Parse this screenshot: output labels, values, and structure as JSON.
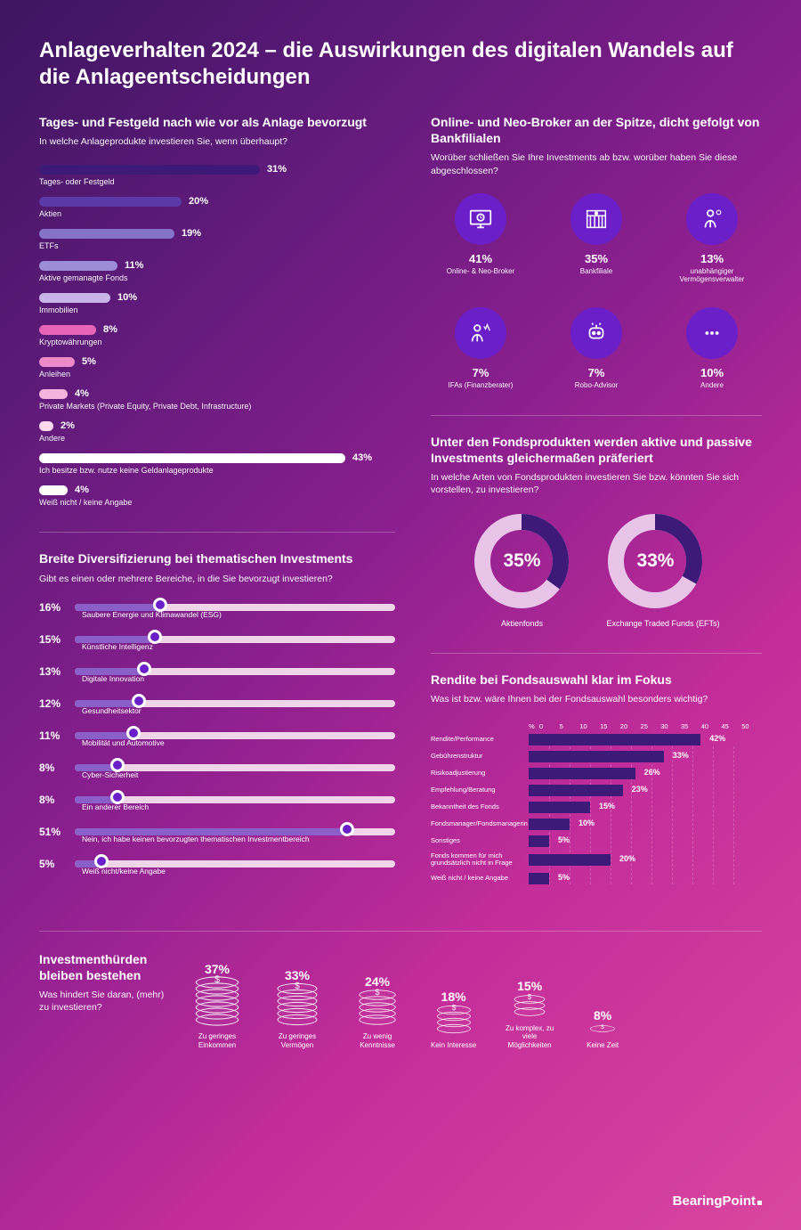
{
  "title": "Anlageverhalten 2024 – die Auswirkungen des digitalen Wandels auf die Anlageentscheidungen",
  "brand": "BearingPoint",
  "colors": {
    "bar_dark_purple": "#3d1a78",
    "bar_mid_purple": "#5b3aa8",
    "bar_light_purple": "#9d8cd6",
    "bar_pale": "#c9b4ea",
    "bar_pink": "#e665b9",
    "bar_light_pink": "#f5b3dc",
    "bar_white": "#ffffff",
    "icon_bg": "#6b1fc9",
    "donut_fg": "#3d1a78",
    "donut_bg": "#e8c5e8",
    "slider_track": "#f0d4e8",
    "slider_fill": "#8b5fc9"
  },
  "s1": {
    "heading": "Tages- und Festgeld nach wie vor als Anlage bevorzugt",
    "subq": "In welche Anlageprodukte investieren Sie, wenn überhaupt?",
    "max_pct": 50,
    "bars": [
      {
        "label": "Tages- oder Festgeld",
        "value": 31,
        "color": "#3d1a78"
      },
      {
        "label": "Aktien",
        "value": 20,
        "color": "#5b3aa8"
      },
      {
        "label": "ETFs",
        "value": 19,
        "color": "#8573c9"
      },
      {
        "label": "Aktive gemanagte Fonds",
        "value": 11,
        "color": "#9d8cd6"
      },
      {
        "label": "Immobilien",
        "value": 10,
        "color": "#c9b4ea"
      },
      {
        "label": "Kryptowährungen",
        "value": 8,
        "color": "#e665b9"
      },
      {
        "label": "Anleihen",
        "value": 5,
        "color": "#ed8bc9"
      },
      {
        "label": "Private Markets (Private Equity, Private Debt, Infrastructure)",
        "value": 4,
        "color": "#f5b3dc"
      },
      {
        "label": "Andere",
        "value": 2,
        "color": "#fcd9ed"
      },
      {
        "label": "Ich besitze bzw. nutze keine Geldanlageprodukte",
        "value": 43,
        "color": "#ffffff"
      },
      {
        "label": "Weiß nicht / keine Angabe",
        "value": 4,
        "color": "#ffffff"
      }
    ]
  },
  "s2": {
    "heading": "Breite Diversifizierung bei thematischen Investments",
    "subq": "Gibt es einen oder mehrere Bereiche, in die Sie bevorzugt investieren?",
    "max_pct": 60,
    "rows": [
      {
        "label": "Saubere Energie und Klimawandel (ESG)",
        "value": 16
      },
      {
        "label": "Künstliche Intelligenz",
        "value": 15
      },
      {
        "label": "Digitale Innovation",
        "value": 13
      },
      {
        "label": "Gesundheitsektor",
        "value": 12
      },
      {
        "label": "Mobilität und Automotive",
        "value": 11
      },
      {
        "label": "Cyber-Sicherheit",
        "value": 8
      },
      {
        "label": "Ein anderer Bereich",
        "value": 8
      },
      {
        "label": "Nein, ich habe keinen bevorzugten thematischen Investmentbereich",
        "value": 51
      },
      {
        "label": "Weiß nicht/keine Angabe",
        "value": 5
      }
    ]
  },
  "s3": {
    "heading": "Online- und Neo-Broker an der Spitze, dicht gefolgt von Bankfilialen",
    "subq": "Worüber schließen Sie Ihre Investments ab bzw. worüber haben Sie diese abgeschlossen?",
    "items": [
      {
        "label": "Online- & Neo-Broker",
        "value": 41,
        "icon": "monitor"
      },
      {
        "label": "Bankfiliale",
        "value": 35,
        "icon": "bank"
      },
      {
        "label": "unabhängiger Vermögensverwalter",
        "value": 13,
        "icon": "person"
      },
      {
        "label": "IFAs (Finanzberater)",
        "value": 7,
        "icon": "advisor"
      },
      {
        "label": "Robo-Advisor",
        "value": 7,
        "icon": "robot"
      },
      {
        "label": "Andere",
        "value": 10,
        "icon": "dots"
      }
    ]
  },
  "s4": {
    "heading": "Unter den Fondsprodukten werden aktive und passive Investments gleichermaßen präferiert",
    "subq": "In welche Arten von Fondsprodukten investieren Sie bzw. könnten Sie sich vorstellen, zu investieren?",
    "donuts": [
      {
        "label": "Aktienfonds",
        "value": 35
      },
      {
        "label": "Exchange Traded Funds (EFTs)",
        "value": 33
      }
    ]
  },
  "s5": {
    "heading": "Rendite bei Fondsauswahl klar im Fokus",
    "subq": "Was ist bzw. wäre Ihnen bei der Fondsauswahl besonders wichtig?",
    "scale_label": "%",
    "scale": [
      0,
      5,
      10,
      15,
      20,
      25,
      30,
      35,
      40,
      45,
      50
    ],
    "max": 50,
    "rows": [
      {
        "label": "Rendite/Performance",
        "value": 42
      },
      {
        "label": "Gebührenstruktur",
        "value": 33
      },
      {
        "label": "Risikoadjustierung",
        "value": 26
      },
      {
        "label": "Empfehlung/Beratung",
        "value": 23
      },
      {
        "label": "Bekanntheit des Fonds",
        "value": 15
      },
      {
        "label": "Fondsmanager/Fondsmanagerin",
        "value": 10
      },
      {
        "label": "Sonstiges",
        "value": 5
      },
      {
        "label": "Fonds kommen für mich grundsätzlich nicht in Frage",
        "value": 20
      },
      {
        "label": "Weiß nicht / keine Angabe",
        "value": 5
      }
    ]
  },
  "s6": {
    "heading": "Investmenthürden bleiben bestehen",
    "subq": "Was hindert Sie daran, (mehr) zu investieren?",
    "stacks": [
      {
        "label": "Zu geringes Einkommen",
        "value": 37,
        "coins": 7
      },
      {
        "label": "Zu geringes Vermögen",
        "value": 33,
        "coins": 6
      },
      {
        "label": "Zu wenig Kenntnisse",
        "value": 24,
        "coins": 5
      },
      {
        "label": "Kein Interesse",
        "value": 18,
        "coins": 4
      },
      {
        "label": "Zu komplex, zu viele Möglichkeiten",
        "value": 15,
        "coins": 3
      },
      {
        "label": "Keine Zeit",
        "value": 8,
        "coins": 1
      }
    ]
  }
}
